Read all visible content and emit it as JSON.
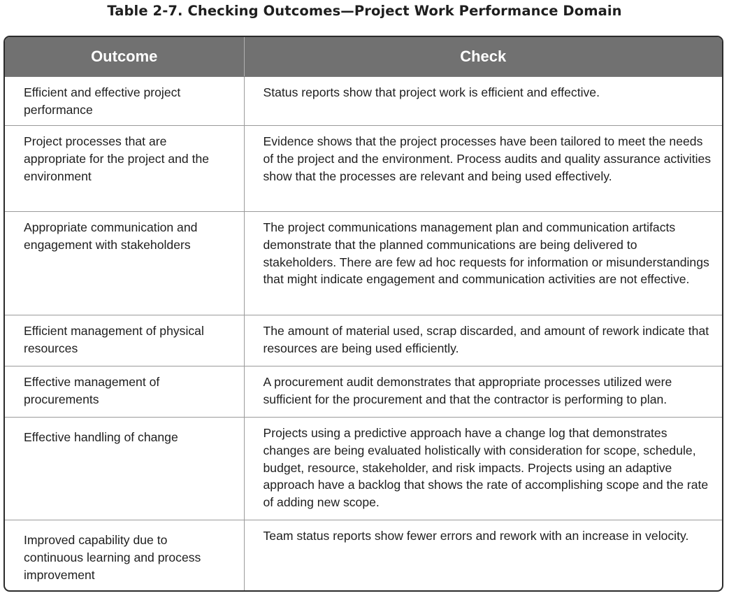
{
  "caption": "Table 2-7. Checking Outcomes—Project Work Performance Domain",
  "table": {
    "headers": {
      "outcome": "Outcome",
      "check": "Check"
    },
    "rows": [
      {
        "outcome": "Efficient and effective project performance",
        "check": "Status reports show that project work is efficient and effective."
      },
      {
        "outcome": "Project processes that are appropriate for the project and the environment",
        "check": "Evidence shows that the project processes have been tailored to meet the needs of the project and the environment. Process audits and quality assurance activities show that the processes are relevant and being used effectively."
      },
      {
        "outcome": "Appropriate communication and engagement with stakeholders",
        "check": "The project communications management plan and communication artifacts demonstrate that the planned communications are being delivered to stakeholders. There are few ad hoc requests for information or misunderstandings that might indicate engagement and communication activities are not effective."
      },
      {
        "outcome": "Efficient management of physical resources",
        "check": "The amount of material used, scrap discarded, and amount of rework indicate that resources are being used efficiently."
      },
      {
        "outcome": "Effective management of procurements",
        "check": "A procurement audit demonstrates that appropriate processes utilized were sufficient for the procurement and that the contractor is performing to plan."
      },
      {
        "outcome": "Effective handling of change",
        "check": "Projects using a predictive approach have a change log that demonstrates changes are being evaluated holistically with consideration for scope, schedule, budget, resource, stakeholder, and risk impacts. Projects using an adaptive approach have a backlog that shows the rate of accomplishing scope and the rate of adding new scope."
      },
      {
        "outcome": "Improved capability due to continuous learning and process improvement",
        "check": "Team status reports show fewer errors and rework with an increase in velocity."
      }
    ]
  }
}
